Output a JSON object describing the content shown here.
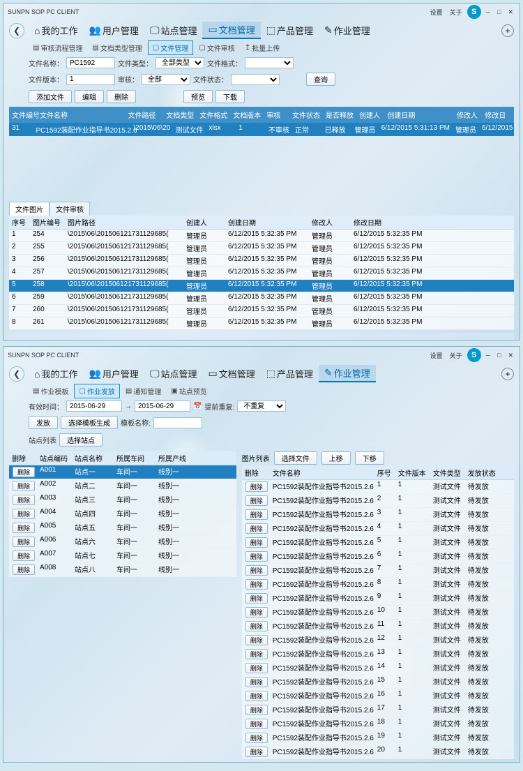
{
  "win1": {
    "title": "SUNPN SOP PC CLIENT",
    "sys": {
      "settings": "设置",
      "about": "关于"
    },
    "nav": [
      {
        "icon": "⌂",
        "label": "我的工作"
      },
      {
        "icon": "👥",
        "label": "用户管理"
      },
      {
        "icon": "🖵",
        "label": "站点管理"
      },
      {
        "icon": "▭",
        "label": "文档管理",
        "active": true
      },
      {
        "icon": "⬚",
        "label": "产品管理"
      },
      {
        "icon": "✎",
        "label": "作业管理"
      }
    ],
    "subnav": [
      {
        "icon": "▤",
        "label": "审核流程管理"
      },
      {
        "icon": "▤",
        "label": "文档类型管理"
      },
      {
        "icon": "▢",
        "label": "文件管理",
        "active": true
      },
      {
        "icon": "▢",
        "label": "文件审核"
      },
      {
        "icon": "↥",
        "label": "批量上传"
      }
    ],
    "form": {
      "file_name_lbl": "文件名称：",
      "file_name_val": "PC1592",
      "file_type_lbl": "文件类型：",
      "file_type_val": "全部类型",
      "file_fmt_lbl": "文件格式：",
      "file_ver_lbl": "文件版本：",
      "file_ver_val": "1",
      "reviewer_lbl": "审核：",
      "reviewer_val": "全部",
      "file_status_lbl": "文件状态：",
      "query_btn": "查询",
      "add_btn": "添加文件",
      "edit_btn": "编辑",
      "del_btn": "删除",
      "preview_btn": "预览",
      "download_btn": "下载"
    },
    "filecols": [
      "文件编号",
      "文件名称",
      "文件路径",
      "文档类型",
      "文件格式",
      "文档版本",
      "审核",
      "文件状态",
      "是否释放",
      "创建人",
      "创建日期",
      "修改人",
      "修改日"
    ],
    "filerow": [
      "31",
      "PC1592装配作业指导书2015.2.6",
      "\\2015\\06\\20",
      "测试文件",
      "xlsx",
      "1",
      "不审核",
      "正常",
      "已释放",
      "管理员",
      "6/12/2015 5:31:13 PM",
      "管理员",
      "6/12/2015"
    ],
    "bottomtabs": [
      "文件图片",
      "文件审核"
    ],
    "imgcols": [
      "序号",
      "图片编号",
      "图片路径",
      "创建人",
      "创建日期",
      "修改人",
      "修改日期"
    ],
    "imgrows": [
      [
        "1",
        "254",
        "\\2015\\06\\201506121731129685(",
        "管理员",
        "6/12/2015 5:32:35 PM",
        "管理员",
        "6/12/2015 5:32:35 PM"
      ],
      [
        "2",
        "255",
        "\\2015\\06\\201506121731129685(",
        "管理员",
        "6/12/2015 5:32:35 PM",
        "管理员",
        "6/12/2015 5:32:35 PM"
      ],
      [
        "3",
        "256",
        "\\2015\\06\\201506121731129685(",
        "管理员",
        "6/12/2015 5:32:35 PM",
        "管理员",
        "6/12/2015 5:32:35 PM"
      ],
      [
        "4",
        "257",
        "\\2015\\06\\201506121731129685(",
        "管理员",
        "6/12/2015 5:32:35 PM",
        "管理员",
        "6/12/2015 5:32:35 PM"
      ],
      [
        "5",
        "258",
        "\\2015\\06\\201506121731129685(",
        "管理员",
        "6/12/2015 5:32:35 PM",
        "管理员",
        "6/12/2015 5:32:35 PM"
      ],
      [
        "6",
        "259",
        "\\2015\\06\\201506121731129685(",
        "管理员",
        "6/12/2015 5:32:35 PM",
        "管理员",
        "6/12/2015 5:32:35 PM"
      ],
      [
        "7",
        "260",
        "\\2015\\06\\201506121731129685(",
        "管理员",
        "6/12/2015 5:32:35 PM",
        "管理员",
        "6/12/2015 5:32:35 PM"
      ],
      [
        "8",
        "261",
        "\\2015\\06\\201506121731129685(",
        "管理员",
        "6/12/2015 5:32:35 PM",
        "管理员",
        "6/12/2015 5:32:35 PM"
      ]
    ]
  },
  "win2": {
    "title": "SUNPN SOP PC CLIENT",
    "sys": {
      "settings": "设置",
      "about": "关于"
    },
    "nav": [
      {
        "icon": "⌂",
        "label": "我的工作"
      },
      {
        "icon": "👥",
        "label": "用户管理"
      },
      {
        "icon": "🖵",
        "label": "站点管理"
      },
      {
        "icon": "▭",
        "label": "文档管理"
      },
      {
        "icon": "⬚",
        "label": "产品管理"
      },
      {
        "icon": "✎",
        "label": "作业管理",
        "active": true
      }
    ],
    "subnav": [
      {
        "icon": "▤",
        "label": "作业模板"
      },
      {
        "icon": "▢",
        "label": "作业发放",
        "active": true
      },
      {
        "icon": "▤",
        "label": "通知管理"
      },
      {
        "icon": "▣",
        "label": "站点预览"
      }
    ],
    "form": {
      "valid_lbl": "有效时间：",
      "date_from": "2015-06-29",
      "date_to": "2015-06-29",
      "repeat_lbl": "提前重复:",
      "repeat_val": "不重复",
      "issue_btn": "发放",
      "gen_btn": "选择模板生成",
      "tmpl_lbl": "模板名称:",
      "station_lbl": "站点列表",
      "sel_station_btn": "选择站点",
      "img_list_lbl": "图片列表",
      "sel_file_btn": "选择文件",
      "up_btn": "上移",
      "dn_btn": "下移"
    },
    "leftcols": [
      "删除",
      "站点编码",
      "站点名称",
      "所属车间",
      "所属产线"
    ],
    "leftrows": [
      [
        "删除",
        "A001",
        "站点一",
        "车间一",
        "线别一"
      ],
      [
        "删除",
        "A002",
        "站点二",
        "车间一",
        "线别一"
      ],
      [
        "删除",
        "A003",
        "站点三",
        "车间一",
        "线别一"
      ],
      [
        "删除",
        "A004",
        "站点四",
        "车间一",
        "线别一"
      ],
      [
        "删除",
        "A005",
        "站点五",
        "车间一",
        "线别一"
      ],
      [
        "删除",
        "A006",
        "站点六",
        "车间一",
        "线别一"
      ],
      [
        "删除",
        "A007",
        "站点七",
        "车间一",
        "线别一"
      ],
      [
        "删除",
        "A008",
        "站点八",
        "车间一",
        "线别一"
      ]
    ],
    "rightcols": [
      "删除",
      "文件名称",
      "序号",
      "文件版本",
      "文件类型",
      "发放状态"
    ],
    "rightrows": [
      [
        "删除",
        "PC1592装配作业指导书2015.2.6",
        "1",
        "1",
        "测试文件",
        "待发放"
      ],
      [
        "删除",
        "PC1592装配作业指导书2015.2.6",
        "2",
        "1",
        "测试文件",
        "待发放"
      ],
      [
        "删除",
        "PC1592装配作业指导书2015.2.6",
        "3",
        "1",
        "测试文件",
        "待发放"
      ],
      [
        "删除",
        "PC1592装配作业指导书2015.2.6",
        "4",
        "1",
        "测试文件",
        "待发放"
      ],
      [
        "删除",
        "PC1592装配作业指导书2015.2.6",
        "5",
        "1",
        "测试文件",
        "待发放"
      ],
      [
        "删除",
        "PC1592装配作业指导书2015.2.6",
        "6",
        "1",
        "测试文件",
        "待发放"
      ],
      [
        "删除",
        "PC1592装配作业指导书2015.2.6",
        "7",
        "1",
        "测试文件",
        "待发放"
      ],
      [
        "删除",
        "PC1592装配作业指导书2015.2.6",
        "8",
        "1",
        "测试文件",
        "待发放"
      ],
      [
        "删除",
        "PC1592装配作业指导书2015.2.6",
        "9",
        "1",
        "测试文件",
        "待发放"
      ],
      [
        "删除",
        "PC1592装配作业指导书2015.2.6",
        "10",
        "1",
        "测试文件",
        "待发放"
      ],
      [
        "删除",
        "PC1592装配作业指导书2015.2.6",
        "11",
        "1",
        "测试文件",
        "待发放"
      ],
      [
        "删除",
        "PC1592装配作业指导书2015.2.6",
        "12",
        "1",
        "测试文件",
        "待发放"
      ],
      [
        "删除",
        "PC1592装配作业指导书2015.2.6",
        "13",
        "1",
        "测试文件",
        "待发放"
      ],
      [
        "删除",
        "PC1592装配作业指导书2015.2.6",
        "14",
        "1",
        "测试文件",
        "待发放"
      ],
      [
        "删除",
        "PC1592装配作业指导书2015.2.6",
        "15",
        "1",
        "测试文件",
        "待发放"
      ],
      [
        "删除",
        "PC1592装配作业指导书2015.2.6",
        "16",
        "1",
        "测试文件",
        "待发放"
      ],
      [
        "删除",
        "PC1592装配作业指导书2015.2.6",
        "17",
        "1",
        "测试文件",
        "待发放"
      ],
      [
        "删除",
        "PC1592装配作业指导书2015.2.6",
        "18",
        "1",
        "测试文件",
        "待发放"
      ],
      [
        "删除",
        "PC1592装配作业指导书2015.2.6",
        "19",
        "1",
        "测试文件",
        "待发放"
      ],
      [
        "删除",
        "PC1592装配作业指导书2015.2.6",
        "20",
        "1",
        "测试文件",
        "待发放"
      ]
    ]
  }
}
